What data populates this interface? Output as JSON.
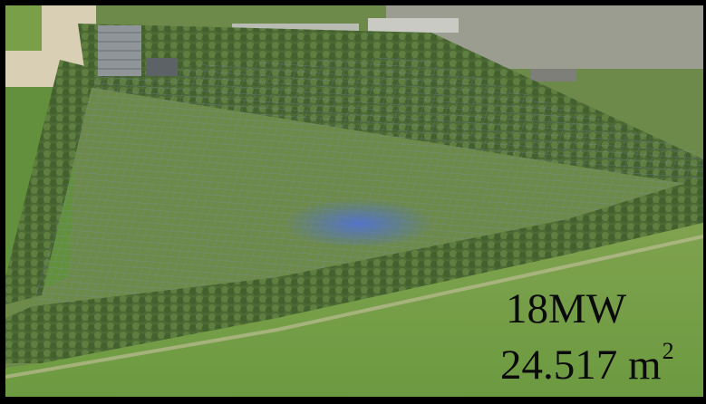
{
  "overlay": {
    "capacity": "18MW",
    "area_value": "24.517 m",
    "area_unit_superscript": "2"
  },
  "colors": {
    "frame": "#000000",
    "panels": "#1a2a78",
    "hedge": "#56733a",
    "field": "#6f9a43"
  }
}
